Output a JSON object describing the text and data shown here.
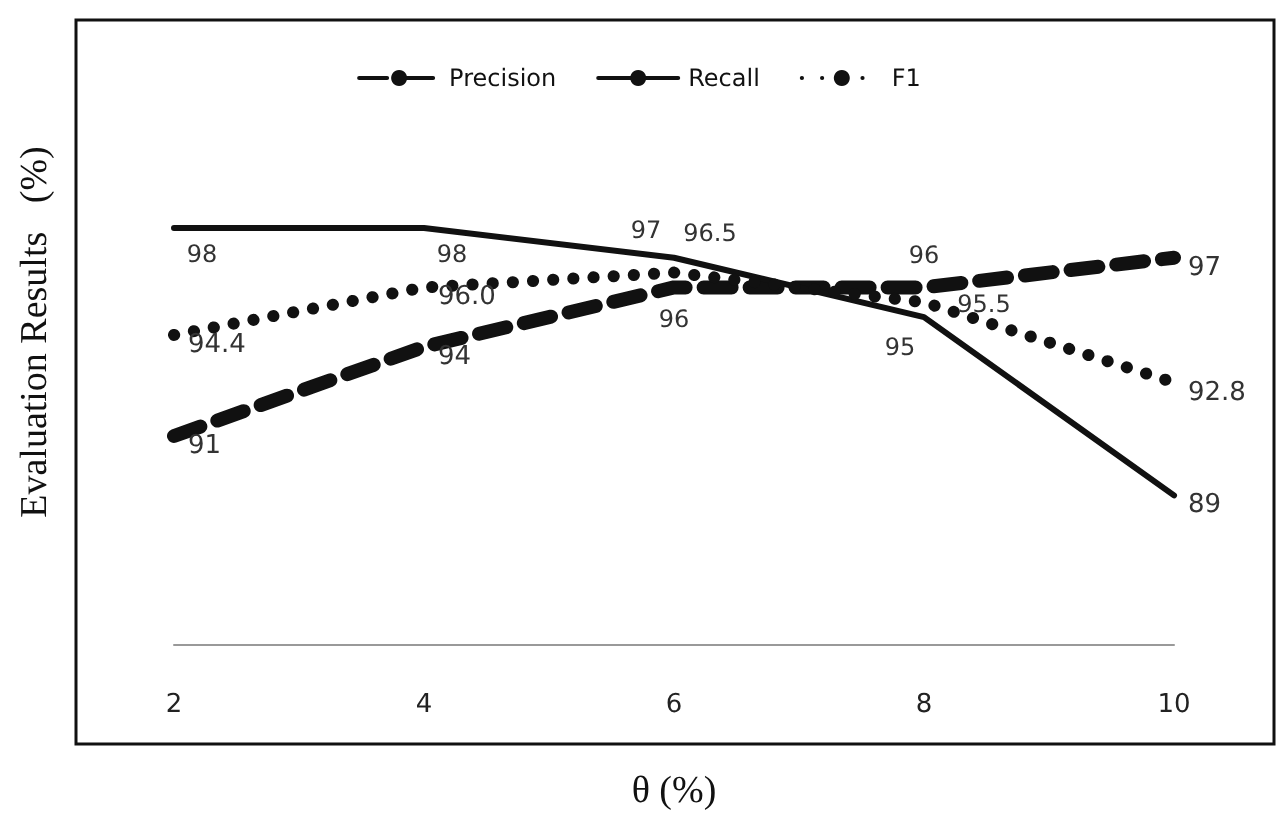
{
  "chart_data": {
    "type": "line",
    "xlabel": "θ (%)",
    "ylabel": "Evaluation Results   (%)",
    "categories": [
      "2",
      "4",
      "6",
      "8",
      "10"
    ],
    "series": [
      {
        "name": "Precision",
        "color": "#111111",
        "line_style": "dashed",
        "values": [
          91,
          94,
          96,
          96,
          97
        ],
        "value_labels": [
          "91",
          "94",
          "96",
          "96",
          "97"
        ]
      },
      {
        "name": "Recall",
        "color": "#111111",
        "line_style": "solid",
        "values": [
          98,
          98,
          97,
          95,
          89
        ],
        "value_labels": [
          "98",
          "98",
          "97",
          "95",
          "89"
        ]
      },
      {
        "name": "F1",
        "color": "#111111",
        "line_style": "dotted",
        "values": [
          94.4,
          96.0,
          96.5,
          95.5,
          92.8
        ],
        "value_labels": [
          "94.4",
          "96.0",
          "96.5",
          "95.5",
          "92.8"
        ]
      }
    ],
    "ylim": [
      84,
      105
    ],
    "tick_labels": "x",
    "grid": false,
    "legend": "top",
    "marker": "none"
  }
}
